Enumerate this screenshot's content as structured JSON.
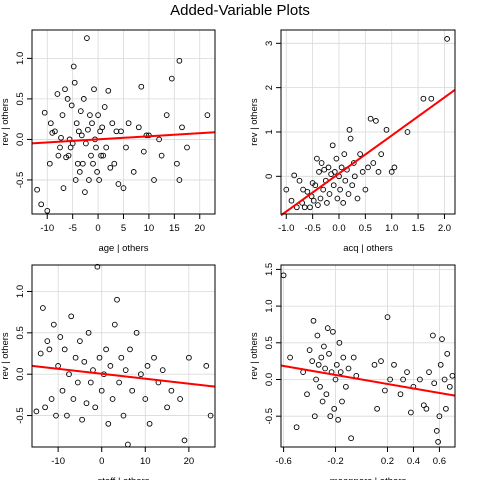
{
  "figure": {
    "title": "Added-Variable Plots"
  },
  "chart_data": [
    {
      "type": "scatter",
      "xlabel": "age | others",
      "ylabel": "rev  | others",
      "xlim": [
        -13,
        23
      ],
      "ylim": [
        -0.92,
        1.35
      ],
      "x_ticks": [
        -10,
        -5,
        0,
        5,
        10,
        15,
        20
      ],
      "x_tick_labels": [
        "-10",
        "-5",
        "0",
        "5",
        "10",
        "15",
        "20"
      ],
      "y_ticks": [
        -0.5,
        0,
        0.5,
        1.0
      ],
      "y_tick_labels": [
        "-0.5",
        "0.0",
        "0.5",
        "1.0"
      ],
      "grid": true,
      "fit_line": {
        "x": [
          -13,
          23
        ],
        "y": [
          -0.048,
          0.088
        ]
      },
      "points": [
        [
          -12,
          -0.62
        ],
        [
          -11.2,
          -0.8
        ],
        [
          -10.5,
          0.33
        ],
        [
          -10,
          -0.88
        ],
        [
          -9.5,
          -0.3
        ],
        [
          -9.3,
          0.2
        ],
        [
          -9,
          0.08
        ],
        [
          -8.5,
          0.1
        ],
        [
          -8,
          0.56
        ],
        [
          -7.8,
          -0.2
        ],
        [
          -7.5,
          -0.1
        ],
        [
          -7.3,
          0.02
        ],
        [
          -7,
          0.3
        ],
        [
          -6.8,
          -0.6
        ],
        [
          -6.5,
          0.62
        ],
        [
          -6.3,
          -0.22
        ],
        [
          -6,
          0.5
        ],
        [
          -5.8,
          -0.2
        ],
        [
          -5.6,
          0.0
        ],
        [
          -5.4,
          -0.1
        ],
        [
          -5.2,
          0.42
        ],
        [
          -5,
          -0.05
        ],
        [
          -4.8,
          0.9
        ],
        [
          -4.6,
          0.7
        ],
        [
          -4.4,
          -0.5
        ],
        [
          -4.2,
          0.2
        ],
        [
          -4,
          -0.3
        ],
        [
          -3.8,
          0.1
        ],
        [
          -3.6,
          -0.4
        ],
        [
          -3.4,
          0.35
        ],
        [
          -3.2,
          0.05
        ],
        [
          -3,
          -0.3
        ],
        [
          -2.8,
          0.5
        ],
        [
          -2.6,
          -0.65
        ],
        [
          -2.4,
          -0.05
        ],
        [
          -2.2,
          1.25
        ],
        [
          -2,
          0.12
        ],
        [
          -1.8,
          -0.5
        ],
        [
          -1.6,
          0.3
        ],
        [
          -1.4,
          -0.2
        ],
        [
          -1.2,
          0.2
        ],
        [
          -1,
          -0.3
        ],
        [
          -0.8,
          0.62
        ],
        [
          -0.6,
          0.0
        ],
        [
          -0.4,
          -0.1
        ],
        [
          -0.2,
          -0.4
        ],
        [
          0,
          0.3
        ],
        [
          0.2,
          -0.5
        ],
        [
          0.4,
          0.1
        ],
        [
          0.6,
          -0.2
        ],
        [
          0.8,
          0.15
        ],
        [
          1,
          -0.2
        ],
        [
          1.3,
          0.4
        ],
        [
          1.6,
          -0.1
        ],
        [
          2,
          0.6
        ],
        [
          2.4,
          -0.35
        ],
        [
          2.8,
          0.2
        ],
        [
          3.2,
          -0.3
        ],
        [
          3.6,
          0.1
        ],
        [
          4,
          -0.55
        ],
        [
          4.5,
          0.1
        ],
        [
          5,
          -0.6
        ],
        [
          5.5,
          -0.1
        ],
        [
          6,
          0.2
        ],
        [
          7,
          -0.4
        ],
        [
          8,
          0.15
        ],
        [
          8.5,
          0.65
        ],
        [
          9,
          -0.15
        ],
        [
          9.5,
          0.05
        ],
        [
          10,
          0.05
        ],
        [
          11,
          -0.5
        ],
        [
          12,
          0.0
        ],
        [
          12.5,
          -0.2
        ],
        [
          13.5,
          0.3
        ],
        [
          14.5,
          0.75
        ],
        [
          15.5,
          -0.3
        ],
        [
          16,
          -0.5
        ],
        [
          16,
          0.97
        ],
        [
          16.5,
          0.15
        ],
        [
          17.5,
          -0.1
        ],
        [
          21.5,
          0.3
        ]
      ]
    },
    {
      "type": "scatter",
      "xlabel": "acq | others",
      "ylabel": "rev  | others",
      "xlim": [
        -1.1,
        2.2
      ],
      "ylim": [
        -0.85,
        3.3
      ],
      "x_ticks": [
        -1.0,
        -0.5,
        0.0,
        0.5,
        1.0,
        1.5,
        2.0
      ],
      "x_tick_labels": [
        "-1.0",
        "-0.5",
        "0.0",
        "0.5",
        "1.0",
        "1.5",
        "2.0"
      ],
      "y_ticks": [
        0,
        1,
        2,
        3
      ],
      "y_tick_labels": [
        "0",
        "1",
        "2",
        "3"
      ],
      "grid": true,
      "fit_line": {
        "x": [
          -1.1,
          2.2
        ],
        "y": [
          -0.88,
          1.95
        ]
      },
      "points": [
        [
          -1.0,
          -0.3
        ],
        [
          -0.9,
          -0.55
        ],
        [
          -0.85,
          0.02
        ],
        [
          -0.8,
          -0.7
        ],
        [
          -0.75,
          -0.1
        ],
        [
          -0.7,
          -0.6
        ],
        [
          -0.68,
          -0.3
        ],
        [
          -0.65,
          -0.7
        ],
        [
          -0.6,
          -0.35
        ],
        [
          -0.55,
          -0.7
        ],
        [
          -0.52,
          -0.45
        ],
        [
          -0.5,
          -0.15
        ],
        [
          -0.48,
          -0.55
        ],
        [
          -0.45,
          -0.2
        ],
        [
          -0.42,
          0.4
        ],
        [
          -0.4,
          -0.65
        ],
        [
          -0.38,
          0.1
        ],
        [
          -0.35,
          -0.5
        ],
        [
          -0.33,
          0.3
        ],
        [
          -0.3,
          -0.3
        ],
        [
          -0.28,
          0.15
        ],
        [
          -0.25,
          -0.1
        ],
        [
          -0.23,
          -0.6
        ],
        [
          -0.2,
          0.2
        ],
        [
          -0.18,
          -0.4
        ],
        [
          -0.15,
          0.05
        ],
        [
          -0.12,
          0.7
        ],
        [
          -0.1,
          -0.2
        ],
        [
          -0.08,
          0.1
        ],
        [
          -0.05,
          0.4
        ],
        [
          -0.03,
          -0.5
        ],
        [
          0,
          0.0
        ],
        [
          0.02,
          -0.3
        ],
        [
          0.05,
          0.2
        ],
        [
          0.08,
          -0.6
        ],
        [
          0.1,
          0.5
        ],
        [
          0.12,
          -0.1
        ],
        [
          0.15,
          0.15
        ],
        [
          0.18,
          -0.4
        ],
        [
          0.2,
          1.05
        ],
        [
          0.22,
          0.85
        ],
        [
          0.25,
          -0.2
        ],
        [
          0.28,
          0.3
        ],
        [
          0.3,
          0.0
        ],
        [
          0.35,
          -0.5
        ],
        [
          0.4,
          0.5
        ],
        [
          0.45,
          0.1
        ],
        [
          0.5,
          -0.3
        ],
        [
          0.55,
          0.2
        ],
        [
          0.6,
          1.3
        ],
        [
          0.65,
          0.3
        ],
        [
          0.7,
          1.25
        ],
        [
          0.75,
          0.1
        ],
        [
          0.8,
          0.5
        ],
        [
          0.9,
          1.05
        ],
        [
          1.0,
          0.1
        ],
        [
          1.05,
          0.2
        ],
        [
          1.3,
          1.0
        ],
        [
          1.6,
          1.75
        ],
        [
          1.75,
          1.75
        ],
        [
          2.05,
          3.1
        ]
      ]
    },
    {
      "type": "scatter",
      "xlabel": "staff | others",
      "ylabel": "rev  | others",
      "xlim": [
        -16,
        26
      ],
      "ylim": [
        -0.88,
        1.32
      ],
      "x_ticks": [
        -10,
        0,
        10,
        20
      ],
      "x_tick_labels": [
        "-10",
        "0",
        "10",
        "20"
      ],
      "y_ticks": [
        -0.5,
        0,
        0.5,
        1.0
      ],
      "y_tick_labels": [
        "-0.5",
        "0.0",
        "0.5",
        "1.0"
      ],
      "grid": true,
      "fit_line": {
        "x": [
          -16,
          26
        ],
        "y": [
          0.1,
          -0.15
        ]
      },
      "points": [
        [
          -15,
          -0.45
        ],
        [
          -14,
          0.25
        ],
        [
          -13.5,
          0.8
        ],
        [
          -13,
          -0.4
        ],
        [
          -12.5,
          0.4
        ],
        [
          -12,
          0.3
        ],
        [
          -11.5,
          -0.3
        ],
        [
          -11,
          0.6
        ],
        [
          -10.5,
          -0.5
        ],
        [
          -10,
          0.1
        ],
        [
          -9.5,
          0.45
        ],
        [
          -9,
          -0.2
        ],
        [
          -8.5,
          0.3
        ],
        [
          -8,
          -0.5
        ],
        [
          -7.5,
          0.0
        ],
        [
          -7,
          0.7
        ],
        [
          -6.5,
          -0.3
        ],
        [
          -6,
          0.2
        ],
        [
          -5.5,
          -0.1
        ],
        [
          -5,
          0.4
        ],
        [
          -4.5,
          -0.55
        ],
        [
          -4,
          0.15
        ],
        [
          -3.5,
          -0.35
        ],
        [
          -3,
          0.5
        ],
        [
          -2.5,
          -0.1
        ],
        [
          -2,
          0.05
        ],
        [
          -1.5,
          -0.4
        ],
        [
          -1,
          1.3
        ],
        [
          -0.5,
          0.2
        ],
        [
          0,
          -0.2
        ],
        [
          0.5,
          0.0
        ],
        [
          1,
          0.3
        ],
        [
          1.5,
          -0.6
        ],
        [
          2,
          0.1
        ],
        [
          2.5,
          -0.3
        ],
        [
          3,
          0.6
        ],
        [
          3.5,
          0.9
        ],
        [
          4,
          -0.1
        ],
        [
          4.5,
          0.2
        ],
        [
          5,
          -0.5
        ],
        [
          5.5,
          0.05
        ],
        [
          6,
          -0.85
        ],
        [
          6.5,
          0.3
        ],
        [
          7,
          -0.2
        ],
        [
          8,
          0.5
        ],
        [
          9,
          0.0
        ],
        [
          10,
          -0.3
        ],
        [
          10.5,
          0.1
        ],
        [
          11,
          -0.6
        ],
        [
          12,
          0.2
        ],
        [
          13,
          -0.1
        ],
        [
          14,
          0.05
        ],
        [
          15,
          -0.4
        ],
        [
          16,
          -0.2
        ],
        [
          18,
          -0.3
        ],
        [
          19,
          -0.8
        ],
        [
          20,
          0.2
        ],
        [
          24,
          0.1
        ],
        [
          25,
          -0.5
        ]
      ]
    },
    {
      "type": "scatter",
      "xlabel": "meanperc | others",
      "ylabel": "rev  | others",
      "xlim": [
        -0.62,
        0.72
      ],
      "ylim": [
        -0.92,
        1.56
      ],
      "x_ticks": [
        -0.6,
        -0.2,
        0.2,
        0.4,
        0.6
      ],
      "x_tick_labels": [
        "-0.6",
        "-0.2",
        "0.2",
        "0.4",
        "0.6"
      ],
      "y_ticks": [
        -0.5,
        0,
        0.5,
        1.0,
        1.5
      ],
      "y_tick_labels": [
        "-0.5",
        "0.0",
        "0.5",
        "1.0",
        "1.5"
      ],
      "grid": true,
      "fit_line": {
        "x": [
          -0.62,
          0.72
        ],
        "y": [
          0.19,
          -0.22
        ]
      },
      "points": [
        [
          -0.6,
          1.42
        ],
        [
          -0.55,
          0.3
        ],
        [
          -0.5,
          -0.65
        ],
        [
          -0.45,
          0.1
        ],
        [
          -0.42,
          -0.2
        ],
        [
          -0.4,
          0.4
        ],
        [
          -0.38,
          0.25
        ],
        [
          -0.37,
          0.8
        ],
        [
          -0.36,
          -0.5
        ],
        [
          -0.35,
          0.0
        ],
        [
          -0.34,
          0.6
        ],
        [
          -0.33,
          0.2
        ],
        [
          -0.32,
          -0.1
        ],
        [
          -0.31,
          0.3
        ],
        [
          -0.3,
          -0.3
        ],
        [
          -0.29,
          0.45
        ],
        [
          -0.28,
          0.15
        ],
        [
          -0.27,
          -0.2
        ],
        [
          -0.26,
          0.7
        ],
        [
          -0.25,
          0.35
        ],
        [
          -0.24,
          -0.5
        ],
        [
          -0.23,
          0.1
        ],
        [
          -0.22,
          0.65
        ],
        [
          -0.21,
          -0.4
        ],
        [
          -0.2,
          0.0
        ],
        [
          -0.19,
          0.2
        ],
        [
          -0.18,
          -0.55
        ],
        [
          -0.17,
          0.5
        ],
        [
          -0.16,
          0.1
        ],
        [
          -0.15,
          -0.3
        ],
        [
          -0.14,
          0.3
        ],
        [
          -0.12,
          -0.1
        ],
        [
          -0.1,
          0.15
        ],
        [
          -0.08,
          -0.8
        ],
        [
          -0.06,
          0.3
        ],
        [
          -0.04,
          0.05
        ],
        [
          0.1,
          0.2
        ],
        [
          0.12,
          -0.4
        ],
        [
          0.15,
          0.25
        ],
        [
          0.18,
          -0.15
        ],
        [
          0.2,
          0.85
        ],
        [
          0.22,
          0.0
        ],
        [
          0.25,
          0.2
        ],
        [
          0.3,
          -0.2
        ],
        [
          0.32,
          0.0
        ],
        [
          0.35,
          0.1
        ],
        [
          0.38,
          -0.45
        ],
        [
          0.4,
          -0.1
        ],
        [
          0.45,
          0.0
        ],
        [
          0.48,
          -0.35
        ],
        [
          0.5,
          -0.4
        ],
        [
          0.52,
          0.1
        ],
        [
          0.55,
          0.6
        ],
        [
          0.56,
          -0.05
        ],
        [
          0.58,
          -0.7
        ],
        [
          0.59,
          -0.85
        ],
        [
          0.6,
          -0.5
        ],
        [
          0.61,
          0.2
        ],
        [
          0.62,
          0.55
        ],
        [
          0.64,
          0.0
        ],
        [
          0.65,
          -0.4
        ],
        [
          0.66,
          0.35
        ],
        [
          0.68,
          -0.1
        ],
        [
          0.7,
          0.05
        ]
      ]
    }
  ],
  "colors": {
    "fit_line": "#ff0000",
    "points": "#000000",
    "grid": "#d9d9d9",
    "frame": "#000000"
  }
}
